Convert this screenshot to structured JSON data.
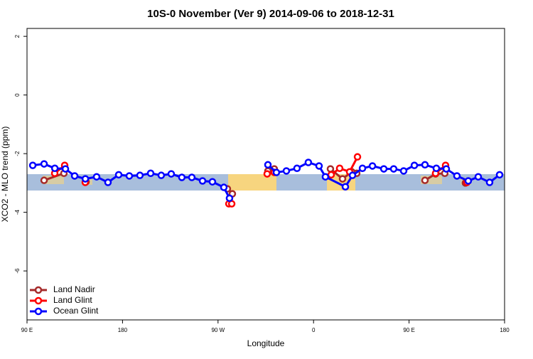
{
  "chart_data": {
    "type": "line",
    "title": "10S-0 November (Ver 9)   2014-09-06 to 2018-12-31",
    "xlabel": "Longitude",
    "ylabel": "XCO2 - MLO trend (ppm)",
    "xlim": [
      90,
      540
    ],
    "ylim": [
      -7.67,
      2.27
    ],
    "xticks": [
      {
        "value": 90,
        "label": "90 E"
      },
      180,
      {
        "value": 270,
        "label": "90 W"
      },
      {
        "value": 360,
        "label": "0"
      },
      {
        "value": 450,
        "label": "90 E"
      },
      {
        "value": 540,
        "label": "180"
      }
    ],
    "yticks": [
      2,
      0,
      -2,
      -4,
      -6
    ],
    "legend": "bottom-left",
    "series": [
      {
        "name": "Land Nadir",
        "color": "#a52a2a",
        "x": [
          106.1,
          124.8,
          null,
          145.6,
          null,
          278.8,
          283.5,
          null,
          317,
          323,
          null,
          375.9,
          387.3,
          396,
          400.7,
          null,
          465,
          475,
          483.7,
          null,
          503.1
        ],
        "values": [
          -2.91,
          -2.67,
          null,
          -2.96,
          null,
          -3.2,
          -3.37,
          null,
          -2.59,
          -2.52,
          null,
          -2.52,
          -2.86,
          -2.62,
          -2.67,
          null,
          -2.91,
          -2.69,
          -2.67,
          null,
          -3.0
        ]
      },
      {
        "name": "Land Glint",
        "color": "#ff0000",
        "x": [
          116.1,
          125.5,
          null,
          144.9,
          null,
          280.2,
          282.9,
          null,
          316.3,
          323,
          null,
          376.6,
          384.6,
          394,
          401.4,
          null,
          475,
          484.4,
          null,
          504.5
        ],
        "values": [
          -2.67,
          -2.4,
          null,
          -2.98,
          null,
          -3.71,
          -3.71,
          null,
          -2.69,
          -2.64,
          null,
          -2.72,
          -2.5,
          -2.62,
          -2.11,
          null,
          -2.67,
          -2.4,
          null,
          -2.98
        ]
      },
      {
        "name": "Ocean Glint",
        "color": "#0000ff",
        "x": [
          95.4,
          106.1,
          116.2,
          126.2,
          134.9,
          145,
          155.6,
          166.3,
          176.4,
          186.4,
          196.4,
          206.5,
          216.5,
          225.9,
          235.9,
          245.3,
          255.4,
          264.7,
          275.5,
          280.8,
          null,
          317,
          325,
          334.4,
          344.4,
          355.1,
          365.2,
          371.2,
          390,
          396.7,
          406.1,
          415.5,
          426.2,
          435.5,
          444.9,
          455,
          465,
          475.7,
          485.1,
          495.1,
          505.8,
          515.2,
          525.9,
          535.3
        ],
        "values": [
          -2.4,
          -2.35,
          -2.5,
          -2.52,
          -2.76,
          -2.86,
          -2.79,
          -2.98,
          -2.72,
          -2.76,
          -2.74,
          -2.67,
          -2.74,
          -2.69,
          -2.81,
          -2.81,
          -2.93,
          -2.96,
          -3.15,
          -3.52,
          null,
          -2.38,
          -2.64,
          -2.59,
          -2.5,
          -2.3,
          -2.42,
          -2.79,
          -3.13,
          -2.74,
          -2.5,
          -2.42,
          -2.52,
          -2.52,
          -2.59,
          -2.4,
          -2.38,
          -2.5,
          -2.52,
          -2.76,
          -2.93,
          -2.79,
          -2.98,
          -2.72
        ]
      }
    ]
  }
}
